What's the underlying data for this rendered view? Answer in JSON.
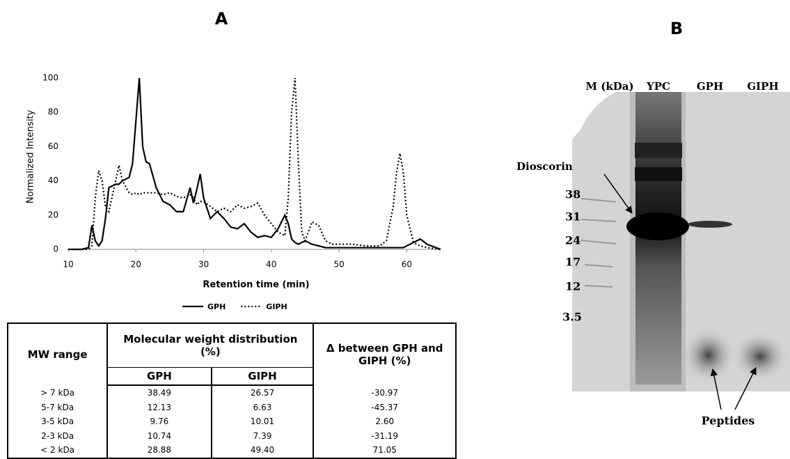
{
  "chart_data": {
    "type": "line",
    "title": "A",
    "x_label": "Retention time (min)",
    "y_label": "Normalized Intensity",
    "x": [
      10,
      12,
      13,
      13.5,
      14,
      14.5,
      15,
      15.5,
      16,
      17,
      17.5,
      18,
      19,
      19.5,
      20,
      20.5,
      21,
      21.5,
      22,
      23,
      24,
      25,
      26,
      27,
      28,
      28.5,
      29,
      29.5,
      30,
      31,
      32,
      33,
      34,
      35,
      36,
      37,
      38,
      39,
      40,
      41,
      42,
      42.5,
      43,
      43.5,
      44,
      44.5,
      45,
      46,
      47,
      48,
      49,
      50,
      52,
      54,
      56,
      57,
      58,
      58.5,
      59,
      59.5,
      60,
      61,
      62,
      63,
      65
    ],
    "series": [
      {
        "name": "GPH",
        "color": "#000000",
        "line_style": "solid",
        "values": [
          0,
          0,
          1,
          14,
          5,
          2,
          5,
          18,
          36,
          38,
          38,
          40,
          42,
          50,
          75,
          100,
          60,
          51,
          50,
          36,
          28,
          26,
          22,
          22,
          36,
          27,
          35,
          44,
          30,
          18,
          22,
          18,
          13,
          12,
          15,
          10,
          7,
          8,
          7,
          12,
          20,
          15,
          6,
          4,
          3,
          4,
          5,
          3,
          2,
          1,
          1,
          1,
          1,
          1,
          1,
          1,
          1,
          1,
          1,
          1,
          2,
          4,
          6,
          3,
          0
        ]
      },
      {
        "name": "GIPH",
        "color": "#000000",
        "line_style": "dotted",
        "values": [
          0,
          0,
          0,
          2,
          30,
          46,
          40,
          25,
          22,
          40,
          49,
          40,
          33,
          32,
          33,
          32,
          33,
          33,
          33,
          33,
          32,
          33,
          31,
          30,
          32,
          30,
          26,
          28,
          28,
          25,
          22,
          24,
          22,
          26,
          24,
          25,
          27,
          20,
          15,
          10,
          8,
          30,
          80,
          100,
          50,
          10,
          5,
          16,
          14,
          5,
          3,
          3,
          3,
          2,
          2,
          5,
          25,
          45,
          56,
          45,
          20,
          4,
          2,
          1,
          0
        ]
      }
    ],
    "xlim": [
      10,
      65
    ],
    "xticks": [
      10,
      20,
      30,
      40,
      50,
      60
    ],
    "ylim": [
      0,
      100
    ],
    "yticks": [
      0,
      20,
      40,
      60,
      80,
      100
    ],
    "grid": false,
    "legend": "bottom"
  },
  "table": {
    "columns": [
      "MW range",
      "Molecular weight distribution (%)",
      "Δ between GPH and GIPH (%)"
    ],
    "subcolumns": [
      "GPH",
      "GIPH"
    ],
    "rows": [
      [
        "> 7 kDa",
        "38.49",
        "26.57",
        "-30.97"
      ],
      [
        "5-7 kDa",
        "12.13",
        "6.63",
        "-45.37"
      ],
      [
        "3-5 kDa",
        "9.76",
        "10.01",
        "2.60"
      ],
      [
        "2-3 kDa",
        "10.74",
        "7.39",
        "-31.19"
      ],
      [
        "< 2 kDa",
        "28.88",
        "49.40",
        "71.05"
      ]
    ]
  },
  "gel": {
    "label": "B",
    "lanes": [
      "M (kDa)",
      "YPC",
      "GPH",
      "GIPH"
    ],
    "markers": [
      "38",
      "31",
      "24",
      "17",
      "12",
      "3.5"
    ],
    "annotations": [
      "Dioscorin",
      "Peptides"
    ]
  }
}
